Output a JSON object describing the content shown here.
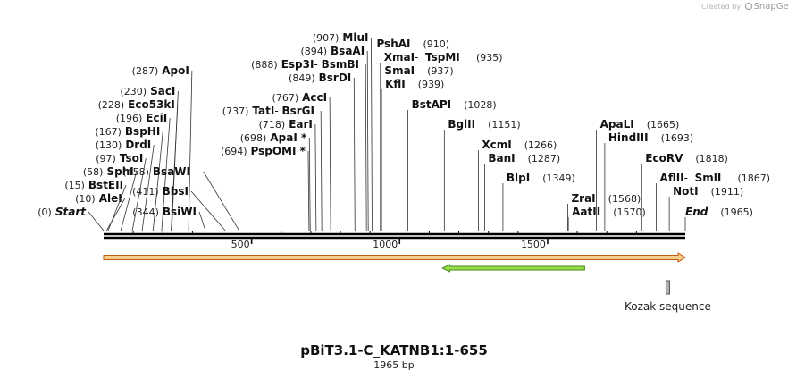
{
  "credit": {
    "prefix": "Created by",
    "brand": "SnapGene"
  },
  "title": "pBiT3.1-C_KATNB1:1-655",
  "subtitle": "1965 bp",
  "sequence_length": 1965,
  "scale_ticks": [
    {
      "pos": 500,
      "label": "500"
    },
    {
      "pos": 1000,
      "label": "1000"
    },
    {
      "pos": 1500,
      "label": "1500"
    }
  ],
  "sites": [
    {
      "pos": 0,
      "name": "Start",
      "pos_label": "(0)",
      "side": "left",
      "italic": true
    },
    {
      "pos": 10,
      "name": "AleI",
      "pos_label": "(10)",
      "side": "left"
    },
    {
      "pos": 15,
      "name": "BstEII",
      "pos_label": "(15)",
      "side": "left"
    },
    {
      "pos": 58,
      "name": "SphI",
      "pos_label": "(58)",
      "side": "left"
    },
    {
      "pos": 97,
      "name": "TsoI",
      "pos_label": "(97)",
      "side": "left"
    },
    {
      "pos": 130,
      "name": "DrdI",
      "pos_label": "(130)",
      "side": "left"
    },
    {
      "pos": 167,
      "name": "BspHI",
      "pos_label": "(167)",
      "side": "left"
    },
    {
      "pos": 196,
      "name": "EciI",
      "pos_label": "(196)",
      "side": "left"
    },
    {
      "pos": 228,
      "name": "Eco53kI",
      "pos_label": "(228)",
      "side": "left"
    },
    {
      "pos": 230,
      "name": "SacI",
      "pos_label": "(230)",
      "side": "left"
    },
    {
      "pos": 287,
      "name": "ApoI",
      "pos_label": "(287)",
      "side": "left"
    },
    {
      "pos": 344,
      "name": "BsiWI",
      "pos_label": "(344)",
      "side": "left"
    },
    {
      "pos": 411,
      "name": "BbsI",
      "pos_label": "(411)",
      "side": "left"
    },
    {
      "pos": 458,
      "name": "BsaWI",
      "pos_label": "(458)",
      "side": "left"
    },
    {
      "pos": 694,
      "name": "PspOMI",
      "pos_label": "(694)",
      "side": "left",
      "star": true
    },
    {
      "pos": 698,
      "name": "ApaI",
      "pos_label": "(698)",
      "side": "left",
      "star": true
    },
    {
      "pos": 718,
      "name": "EarI",
      "pos_label": "(718)",
      "side": "left"
    },
    {
      "pos": 737,
      "name": "TatI",
      "pos_label": "(737)",
      "side": "left",
      "alt": "BsrGI"
    },
    {
      "pos": 767,
      "name": "AccI",
      "pos_label": "(767)",
      "side": "left"
    },
    {
      "pos": 849,
      "name": "BsrDI",
      "pos_label": "(849)",
      "side": "left"
    },
    {
      "pos": 888,
      "name": "Esp3I",
      "pos_label": "(888)",
      "side": "left",
      "alt": "BsmBI"
    },
    {
      "pos": 894,
      "name": "BsaAI",
      "pos_label": "(894)",
      "side": "left"
    },
    {
      "pos": 907,
      "name": "MluI",
      "pos_label": "(907)",
      "side": "left"
    },
    {
      "pos": 910,
      "name": "PshAI",
      "pos_label": "(910)",
      "side": "right"
    },
    {
      "pos": 935,
      "name": "XmaI",
      "pos_label": "(935)",
      "side": "right",
      "alt": "TspMI"
    },
    {
      "pos": 937,
      "name": "SmaI",
      "pos_label": "(937)",
      "side": "right"
    },
    {
      "pos": 939,
      "name": "KflI",
      "pos_label": "(939)",
      "side": "right"
    },
    {
      "pos": 1028,
      "name": "BstAPI",
      "pos_label": "(1028)",
      "side": "right"
    },
    {
      "pos": 1151,
      "name": "BglII",
      "pos_label": "(1151)",
      "side": "right"
    },
    {
      "pos": 1266,
      "name": "XcmI",
      "pos_label": "(1266)",
      "side": "right"
    },
    {
      "pos": 1287,
      "name": "BanI",
      "pos_label": "(1287)",
      "side": "right"
    },
    {
      "pos": 1349,
      "name": "BlpI",
      "pos_label": "(1349)",
      "side": "right"
    },
    {
      "pos": 1568,
      "name": "ZraI",
      "pos_label": "(1568)",
      "side": "right"
    },
    {
      "pos": 1570,
      "name": "AatII",
      "pos_label": "(1570)",
      "side": "right"
    },
    {
      "pos": 1665,
      "name": "ApaLI",
      "pos_label": "(1665)",
      "side": "right"
    },
    {
      "pos": 1693,
      "name": "HindIII",
      "pos_label": "(1693)",
      "side": "right"
    },
    {
      "pos": 1818,
      "name": "EcoRV",
      "pos_label": "(1818)",
      "side": "right"
    },
    {
      "pos": 1867,
      "name": "AflII",
      "pos_label": "(1867)",
      "side": "right",
      "alt": "SmlI"
    },
    {
      "pos": 1911,
      "name": "NotI",
      "pos_label": "(1911)",
      "side": "right"
    },
    {
      "pos": 1965,
      "name": "End",
      "pos_label": "(1965)",
      "side": "right",
      "italic": true
    }
  ],
  "features": [
    {
      "name": "orange-feature-arrow",
      "start": 0,
      "end": 1965,
      "direction": "forward",
      "fill": "#f5d08a",
      "stroke": "#c25a10",
      "label": ""
    },
    {
      "name": "green-feature-arrow",
      "start": 1145,
      "end": 1625,
      "direction": "reverse",
      "fill": "#9ae04a",
      "stroke": "#3f8a12",
      "label": ""
    },
    {
      "name": "kozak-feature",
      "start": 1900,
      "end": 1912,
      "direction": "none",
      "fill": "#b0b0b0",
      "stroke": "#555555",
      "label": "Kozak sequence"
    }
  ]
}
